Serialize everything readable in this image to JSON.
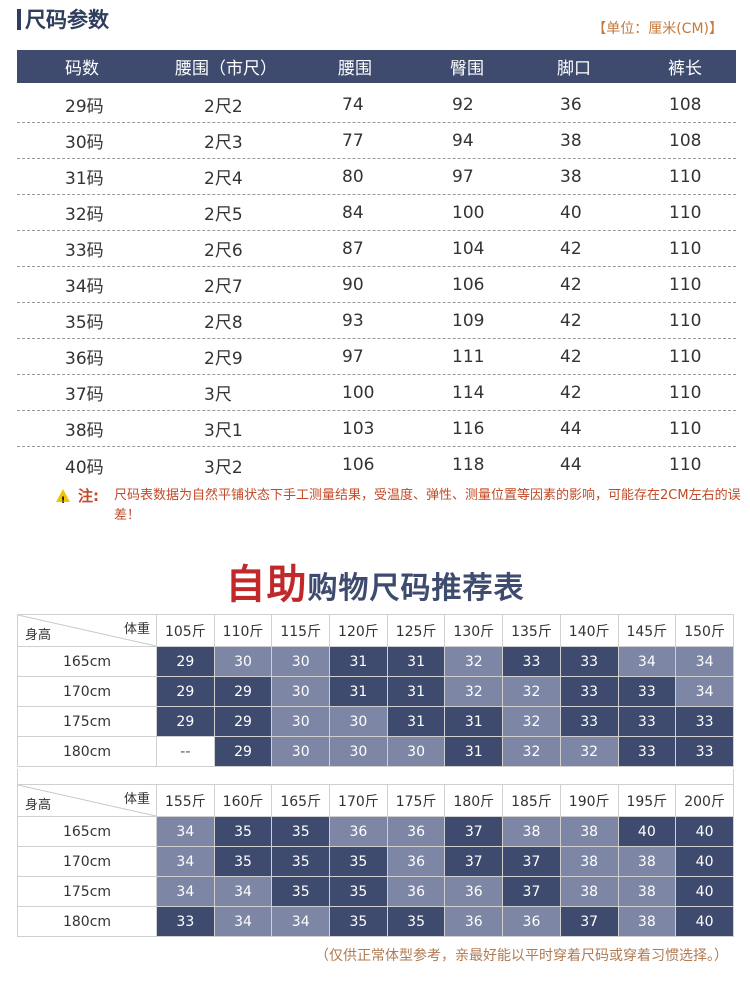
{
  "section1": {
    "title": "尺码参数",
    "unit_note": "【单位：厘米(CM)】",
    "headers": [
      "码数",
      "腰围（市尺）",
      "腰围",
      "臀围",
      "脚口",
      "裤长"
    ],
    "rows": [
      [
        "29码",
        "2尺2",
        "74",
        "92",
        "36",
        "108"
      ],
      [
        "30码",
        "2尺3",
        "77",
        "94",
        "38",
        "108"
      ],
      [
        "31码",
        "2尺4",
        "80",
        "97",
        "38",
        "110"
      ],
      [
        "32码",
        "2尺5",
        "84",
        "100",
        "40",
        "110"
      ],
      [
        "33码",
        "2尺6",
        "87",
        "104",
        "42",
        "110"
      ],
      [
        "34码",
        "2尺7",
        "90",
        "106",
        "42",
        "110"
      ],
      [
        "35码",
        "2尺8",
        "93",
        "109",
        "42",
        "110"
      ],
      [
        "36码",
        "2尺9",
        "97",
        "111",
        "42",
        "110"
      ],
      [
        "37码",
        "3尺",
        "100",
        "114",
        "42",
        "110"
      ],
      [
        "38码",
        "3尺1",
        "103",
        "116",
        "44",
        "110"
      ],
      [
        "40码",
        "3尺2",
        "106",
        "118",
        "44",
        "110"
      ]
    ],
    "warning_label": "注:",
    "warning_text": "尺码表数据为自然平铺状态下手工测量结果，受温度、弹性、测量位置等因素的影响，可能存在2CM左右的误差！"
  },
  "section2": {
    "title_big": "自助",
    "title_small": "购物尺码推荐表",
    "corner_weight": "体重",
    "corner_height": "身高",
    "colors": {
      "dark": "#3e4b6e",
      "light": "#7e86a6"
    },
    "table1": {
      "weights": [
        "105斤",
        "110斤",
        "115斤",
        "120斤",
        "125斤",
        "130斤",
        "135斤",
        "140斤",
        "145斤",
        "150斤"
      ],
      "rows": [
        {
          "height": "165cm",
          "values": [
            "29",
            "30",
            "30",
            "31",
            "31",
            "32",
            "33",
            "33",
            "34",
            "34"
          ],
          "tones": [
            "d",
            "l",
            "l",
            "d",
            "d",
            "l",
            "d",
            "d",
            "l",
            "l"
          ]
        },
        {
          "height": "170cm",
          "values": [
            "29",
            "29",
            "30",
            "31",
            "31",
            "32",
            "32",
            "33",
            "33",
            "34"
          ],
          "tones": [
            "d",
            "d",
            "l",
            "d",
            "d",
            "l",
            "l",
            "d",
            "d",
            "l"
          ]
        },
        {
          "height": "175cm",
          "values": [
            "29",
            "29",
            "30",
            "30",
            "31",
            "31",
            "32",
            "33",
            "33",
            "33"
          ],
          "tones": [
            "d",
            "d",
            "l",
            "l",
            "d",
            "d",
            "l",
            "d",
            "d",
            "d"
          ]
        },
        {
          "height": "180cm",
          "values": [
            "--",
            "29",
            "30",
            "30",
            "30",
            "31",
            "32",
            "32",
            "33",
            "33"
          ],
          "tones": [
            "e",
            "d",
            "l",
            "l",
            "l",
            "d",
            "l",
            "l",
            "d",
            "d"
          ]
        }
      ]
    },
    "table2": {
      "weights": [
        "155斤",
        "160斤",
        "165斤",
        "170斤",
        "175斤",
        "180斤",
        "185斤",
        "190斤",
        "195斤",
        "200斤"
      ],
      "rows": [
        {
          "height": "165cm",
          "values": [
            "34",
            "35",
            "35",
            "36",
            "36",
            "37",
            "38",
            "38",
            "40",
            "40"
          ],
          "tones": [
            "l",
            "d",
            "d",
            "l",
            "l",
            "d",
            "l",
            "l",
            "d",
            "d"
          ]
        },
        {
          "height": "170cm",
          "values": [
            "34",
            "35",
            "35",
            "35",
            "36",
            "37",
            "37",
            "38",
            "38",
            "40"
          ],
          "tones": [
            "l",
            "d",
            "d",
            "d",
            "l",
            "d",
            "d",
            "l",
            "l",
            "d"
          ]
        },
        {
          "height": "175cm",
          "values": [
            "34",
            "34",
            "35",
            "35",
            "36",
            "36",
            "37",
            "38",
            "38",
            "40"
          ],
          "tones": [
            "l",
            "l",
            "d",
            "d",
            "l",
            "l",
            "d",
            "l",
            "l",
            "d"
          ]
        },
        {
          "height": "180cm",
          "values": [
            "33",
            "34",
            "34",
            "35",
            "35",
            "36",
            "36",
            "37",
            "38",
            "40"
          ],
          "tones": [
            "d",
            "l",
            "l",
            "d",
            "d",
            "l",
            "l",
            "d",
            "l",
            "d"
          ]
        }
      ]
    },
    "footer_note": "（仅供正常体型参考，亲最好能以平时穿着尺码或穿着习惯选择。）"
  }
}
